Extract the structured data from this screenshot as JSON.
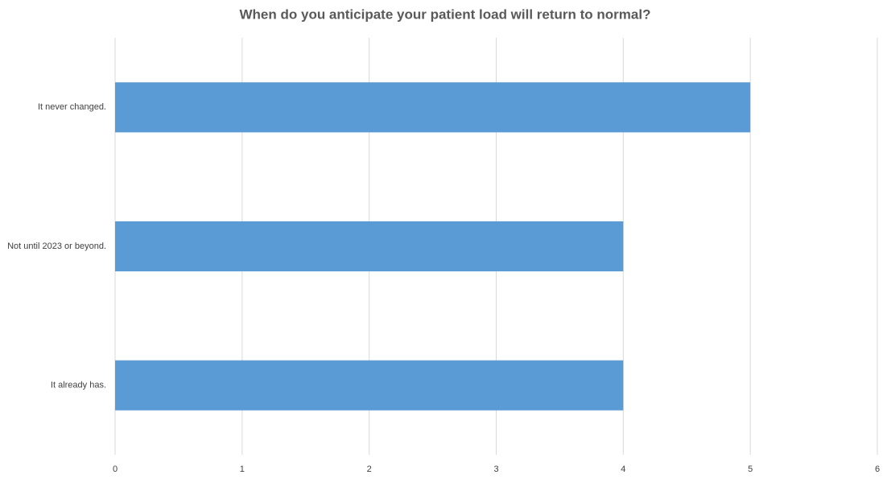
{
  "chart_data": {
    "type": "barh",
    "title": "When do you anticipate your patient load will return to normal?",
    "categories": [
      "It never changed.",
      "Not until 2023 or beyond.",
      "It already has."
    ],
    "values": [
      5,
      4,
      4
    ],
    "color": "#5b9bd5",
    "xlim": [
      0,
      6
    ],
    "xticks": [
      0,
      1,
      2,
      3,
      4,
      5,
      6
    ],
    "grid": true
  }
}
